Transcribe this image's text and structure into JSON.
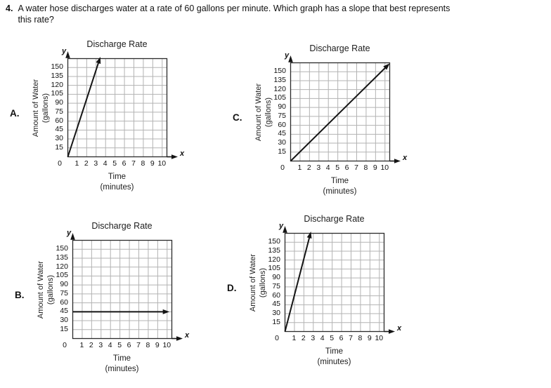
{
  "page": {
    "background": "#ffffff"
  },
  "question": {
    "number": "4.",
    "lines": [
      "A water hose discharges water at a rate of 60 gallons per minute. Which graph has a slope that best represents",
      "this rate?"
    ]
  },
  "colors": {
    "background": "#ffffff",
    "text": "#111111",
    "gridline": "#b3b3b3",
    "axis_border": "#2b2b2b",
    "data_line": "#151515"
  },
  "chart_data": [
    {
      "id": "A",
      "option_label": "A.",
      "type": "line",
      "title": "Discharge Rate",
      "ylabel_lines": [
        "Amount of Water",
        "(gallons)"
      ],
      "xlabel_lines": [
        "Time",
        "(minutes)"
      ],
      "y_axis_letter": "y",
      "x_axis_letter": "x",
      "origin_label": "0",
      "xticks": [
        1,
        2,
        3,
        4,
        5,
        6,
        7,
        8,
        9,
        10
      ],
      "yticks": [
        15,
        30,
        45,
        60,
        75,
        90,
        105,
        120,
        135,
        150
      ],
      "xlim": [
        0,
        10.5
      ],
      "ylim": [
        0,
        165
      ],
      "line": {
        "x": [
          0,
          3.45
        ],
        "y": [
          0,
          168
        ],
        "arrow_start": false,
        "arrow_end": true
      }
    },
    {
      "id": "B",
      "option_label": "B.",
      "type": "line",
      "title": "Discharge Rate",
      "ylabel_lines": [
        "Amount of Water",
        "(gallons)"
      ],
      "xlabel_lines": [
        "Time",
        "(minutes)"
      ],
      "y_axis_letter": "y",
      "x_axis_letter": "x",
      "origin_label": "0",
      "xticks": [
        1,
        2,
        3,
        4,
        5,
        6,
        7,
        8,
        9,
        10
      ],
      "yticks": [
        15,
        30,
        45,
        60,
        75,
        90,
        105,
        120,
        135,
        150
      ],
      "xlim": [
        0,
        10.5
      ],
      "ylim": [
        0,
        165
      ],
      "line": {
        "x": [
          0,
          10.25
        ],
        "y": [
          45,
          45
        ],
        "arrow_start": false,
        "arrow_end": true
      }
    },
    {
      "id": "C",
      "option_label": "C.",
      "type": "line",
      "title": "Discharge Rate",
      "ylabel_lines": [
        "Amount of Water",
        "(gallons)"
      ],
      "xlabel_lines": [
        "Time",
        "(minutes)"
      ],
      "y_axis_letter": "y",
      "x_axis_letter": "x",
      "origin_label": "0",
      "xticks": [
        1,
        2,
        3,
        4,
        5,
        6,
        7,
        8,
        9,
        10
      ],
      "yticks": [
        15,
        30,
        45,
        60,
        75,
        90,
        105,
        120,
        135,
        150
      ],
      "xlim": [
        0,
        10.5
      ],
      "ylim": [
        0,
        165
      ],
      "line": {
        "x": [
          0,
          10.5
        ],
        "y": [
          0,
          164
        ],
        "arrow_start": false,
        "arrow_end": true
      }
    },
    {
      "id": "D",
      "option_label": "D.",
      "type": "line",
      "title": "Discharge Rate",
      "ylabel_lines": [
        "Amount of Water",
        "(gallons)"
      ],
      "xlabel_lines": [
        "Time",
        "(minutes)"
      ],
      "y_axis_letter": "y",
      "x_axis_letter": "x",
      "origin_label": "0",
      "xticks": [
        1,
        2,
        3,
        4,
        5,
        6,
        7,
        8,
        9,
        10
      ],
      "yticks": [
        15,
        30,
        45,
        60,
        75,
        90,
        105,
        120,
        135,
        150
      ],
      "xlim": [
        0,
        10.5
      ],
      "ylim": [
        0,
        165
      ],
      "line": {
        "x": [
          0,
          2.75
        ],
        "y": [
          0,
          168
        ],
        "arrow_start": false,
        "arrow_end": true
      }
    }
  ]
}
